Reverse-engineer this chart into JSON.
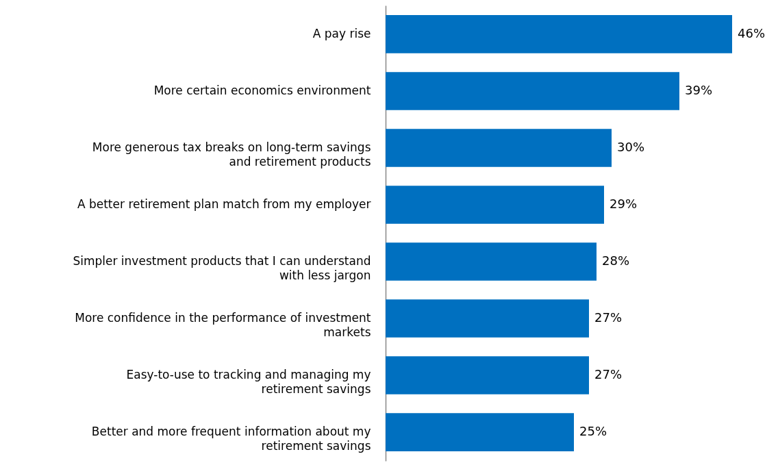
{
  "chart_data": {
    "type": "bar",
    "orientation": "horizontal",
    "categories": [
      "A pay rise",
      "More certain economics environment",
      "More generous tax breaks on long-term savings and retirement products",
      "A better retirement plan match from my employer",
      "Simpler investment products that I can understand with less jargon",
      "More confidence in the performance of investment markets",
      "Easy-to-use to tracking and managing my retirement savings",
      "Better and more frequent information about my retirement savings"
    ],
    "values": [
      46,
      39,
      30,
      29,
      28,
      27,
      27,
      25
    ],
    "value_labels": [
      "46%",
      "39%",
      "30%",
      "29%",
      "28%",
      "27%",
      "27%",
      "25%"
    ],
    "color": "#0070c0"
  }
}
